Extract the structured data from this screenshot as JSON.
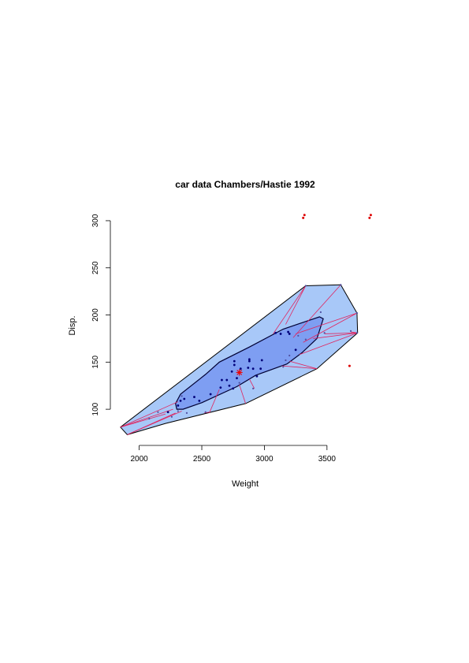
{
  "chart_data": {
    "type": "scatter",
    "title": "car data Chambers/Hastie 1992",
    "xlabel": "Weight",
    "ylabel": "Disp.",
    "xlim": [
      1845,
      3860
    ],
    "ylim": [
      70,
      310
    ],
    "xticks": [
      "2000",
      "2500",
      "3000",
      "3500"
    ],
    "yticks": [
      "100",
      "150",
      "200",
      "250",
      "300"
    ],
    "grid": false,
    "legend": "none",
    "colors": {
      "fence_fill": "#a8c8f8",
      "bag_fill": "#7e9ef2",
      "bag_border": "#000033",
      "whisker": "#e0245e",
      "inner_point": "#00007a",
      "loop_point": "#5050a0",
      "outlier": "#dd0000",
      "center": "#ee0000"
    },
    "center": [
      2800,
      139
    ],
    "fence_polygon": [
      [
        1850,
        81
      ],
      [
        1905,
        73
      ],
      [
        2210,
        85
      ],
      [
        2850,
        106
      ],
      [
        3420,
        143
      ],
      [
        3745,
        181
      ],
      [
        3740,
        202
      ],
      [
        3610,
        232
      ],
      [
        3330,
        231
      ]
    ],
    "bag_polygon": [
      [
        2300,
        100
      ],
      [
        2290,
        106
      ],
      [
        2330,
        116
      ],
      [
        2530,
        137
      ],
      [
        2640,
        150
      ],
      [
        2880,
        166
      ],
      [
        3150,
        185
      ],
      [
        3440,
        198
      ],
      [
        3470,
        196
      ],
      [
        3420,
        175
      ],
      [
        3300,
        160
      ],
      [
        3180,
        148
      ],
      [
        2930,
        136
      ],
      [
        2780,
        124
      ],
      [
        2500,
        107
      ],
      [
        2350,
        100
      ]
    ],
    "whiskers": [
      [
        [
          2210,
          95
        ],
        [
          1850,
          81
        ]
      ],
      [
        [
          2270,
          100
        ],
        [
          1850,
          81
        ]
      ],
      [
        [
          2310,
          108
        ],
        [
          1850,
          81
        ]
      ],
      [
        [
          2290,
          96
        ],
        [
          1905,
          73
        ]
      ],
      [
        [
          2340,
          98
        ],
        [
          1905,
          73
        ]
      ],
      [
        [
          2560,
          97
        ],
        [
          2520,
          96
        ]
      ],
      [
        [
          2640,
          121
        ],
        [
          2560,
          96
        ]
      ],
      [
        [
          2800,
          126
        ],
        [
          2850,
          106
        ]
      ],
      [
        [
          2920,
          122
        ],
        [
          2880,
          132
        ]
      ],
      [
        [
          3140,
          146
        ],
        [
          3420,
          143
        ]
      ],
      [
        [
          3200,
          151
        ],
        [
          3420,
          143
        ]
      ],
      [
        [
          3280,
          158
        ],
        [
          3745,
          181
        ]
      ],
      [
        [
          3480,
          180
        ],
        [
          3745,
          181
        ]
      ],
      [
        [
          3690,
          182
        ],
        [
          3745,
          181
        ]
      ],
      [
        [
          3390,
          175
        ],
        [
          3745,
          181
        ]
      ],
      [
        [
          3310,
          171
        ],
        [
          3740,
          202
        ]
      ],
      [
        [
          3250,
          180
        ],
        [
          3740,
          202
        ]
      ],
      [
        [
          3230,
          176
        ],
        [
          3610,
          232
        ]
      ],
      [
        [
          3170,
          190
        ],
        [
          3330,
          231
        ]
      ],
      [
        [
          3070,
          180
        ],
        [
          3330,
          231
        ]
      ]
    ],
    "inner_points": [
      [
        2230,
        97
      ],
      [
        2310,
        104
      ],
      [
        2330,
        109
      ],
      [
        2360,
        111
      ],
      [
        2440,
        113
      ],
      [
        2480,
        109
      ],
      [
        2570,
        116
      ],
      [
        2650,
        123
      ],
      [
        2660,
        131
      ],
      [
        2700,
        131
      ],
      [
        2720,
        125
      ],
      [
        2740,
        140
      ],
      [
        2750,
        122
      ],
      [
        2760,
        147
      ],
      [
        2760,
        151
      ],
      [
        2780,
        133
      ],
      [
        2810,
        143
      ],
      [
        2870,
        144
      ],
      [
        2880,
        151
      ],
      [
        2880,
        153
      ],
      [
        2910,
        143
      ],
      [
        2940,
        135
      ],
      [
        2970,
        143
      ],
      [
        2980,
        152
      ],
      [
        3090,
        181
      ],
      [
        3130,
        180
      ],
      [
        3190,
        182
      ],
      [
        3200,
        180
      ],
      [
        3250,
        163
      ]
    ],
    "loop_points": [
      [
        2080,
        90
      ],
      [
        2150,
        97
      ],
      [
        2260,
        92
      ],
      [
        2310,
        98
      ],
      [
        2340,
        114
      ],
      [
        2380,
        96
      ],
      [
        2530,
        97
      ],
      [
        2800,
        128
      ],
      [
        2910,
        122
      ],
      [
        3150,
        145
      ],
      [
        3170,
        152
      ],
      [
        3200,
        157
      ],
      [
        3270,
        178
      ],
      [
        3330,
        174
      ],
      [
        3450,
        203
      ],
      [
        3480,
        181
      ],
      [
        3690,
        183
      ],
      [
        3740,
        181
      ],
      [
        3610,
        232
      ],
      [
        3330,
        231
      ],
      [
        3740,
        202
      ]
    ],
    "outliers": [
      [
        3310,
        303
      ],
      [
        3320,
        306
      ],
      [
        3840,
        303
      ],
      [
        3850,
        306
      ],
      [
        3680,
        146
      ]
    ]
  }
}
